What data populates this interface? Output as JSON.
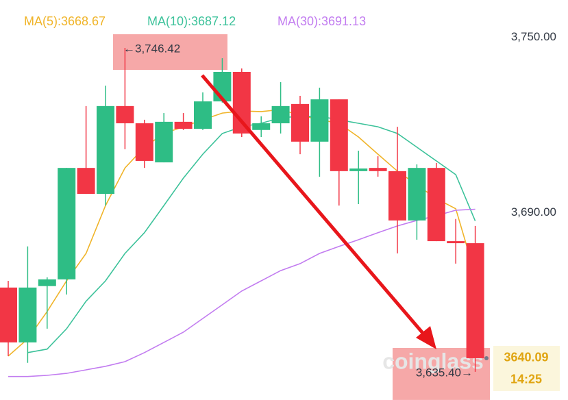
{
  "chart_data": {
    "type": "candlestick",
    "open": [
      3664.3,
      3645.5,
      3664.8,
      3667.1,
      3705.3,
      3696.4,
      3726.5,
      3720.6,
      3707.2,
      3721.1,
      3718.7,
      3728.1,
      3738.2,
      3718.3,
      3720.6,
      3727.2,
      3714.3,
      3728.8,
      3704.2,
      3705.3,
      3704.2,
      3687.3,
      3705.3,
      3680.2,
      3679.5
    ],
    "high": [
      3666.6,
      3678.4,
      3667.8,
      3705.3,
      3726.5,
      3733.5,
      3746.42,
      3721.8,
      3724.1,
      3724.1,
      3731.2,
      3742.9,
      3739.4,
      3723.0,
      3734.7,
      3730.0,
      3732.8,
      3728.8,
      3711.2,
      3709.3,
      3719.4,
      3706.5,
      3707.0,
      3687.8,
      3685.4
    ],
    "low": [
      3640.8,
      3638.5,
      3650.2,
      3661.9,
      3696.4,
      3692.4,
      3711.7,
      3705.3,
      3707.2,
      3718.3,
      3718.3,
      3727.7,
      3715.9,
      3715.9,
      3717.1,
      3710.0,
      3702.3,
      3692.4,
      3692.9,
      3702.3,
      3676.0,
      3680.7,
      3680.2,
      3672.5,
      3635.4
    ],
    "close": [
      3645.5,
      3664.3,
      3667.1,
      3705.3,
      3696.4,
      3726.5,
      3720.6,
      3707.7,
      3721.1,
      3718.7,
      3728.1,
      3738.2,
      3717.1,
      3720.6,
      3726.5,
      3714.3,
      3728.8,
      3704.2,
      3705.1,
      3704.2,
      3687.3,
      3705.3,
      3680.2,
      3679.5,
      3640.09
    ],
    "up_color": "#2ebd85",
    "down_color": "#f23645",
    "series": [
      {
        "name": "MA(5):3668.67",
        "color": "#f0b429",
        "values": [
          3640.8,
          3646.7,
          3656.1,
          3666.6,
          3676.0,
          3692.4,
          3705.3,
          3712.4,
          3717.1,
          3719.4,
          3721.8,
          3724.1,
          3724.8,
          3724.6,
          3725.3,
          3723.4,
          3721.8,
          3720.6,
          3715.9,
          3710.0,
          3704.2,
          3699.5,
          3694.8,
          3691.3,
          3668.67
        ]
      },
      {
        "name": "MA(10):3687.12",
        "color": "#3cc29a",
        "values": [
          null,
          3642.0,
          3643.2,
          3650.2,
          3659.6,
          3666.6,
          3676.0,
          3683.1,
          3692.4,
          3701.8,
          3710.0,
          3717.1,
          3719.4,
          3720.6,
          3722.5,
          3723.0,
          3723.0,
          3721.8,
          3720.6,
          3719.4,
          3717.1,
          3712.4,
          3707.7,
          3703.0,
          3687.12
        ]
      },
      {
        "name": "MA(30):3691.13",
        "color": "#c27cf0",
        "values": [
          3633.8,
          3633.8,
          3634.2,
          3634.9,
          3636.1,
          3637.3,
          3638.9,
          3642.0,
          3645.5,
          3649.0,
          3653.7,
          3658.4,
          3663.1,
          3666.6,
          3670.1,
          3672.5,
          3676.0,
          3678.4,
          3680.7,
          3683.1,
          3685.4,
          3687.3,
          3688.9,
          3690.8,
          3691.13
        ]
      }
    ],
    "ylim": [
      3625.76,
      3762.85
    ],
    "yticks": [
      {
        "value": 3750,
        "label": "3,750.00"
      },
      {
        "value": 3690,
        "label": "3,690.00"
      }
    ],
    "annotations": [
      "←3,746.42",
      "3,635.40→"
    ],
    "last_price": 3640.09,
    "countdown": "14:25",
    "watermark": "coinglass"
  }
}
